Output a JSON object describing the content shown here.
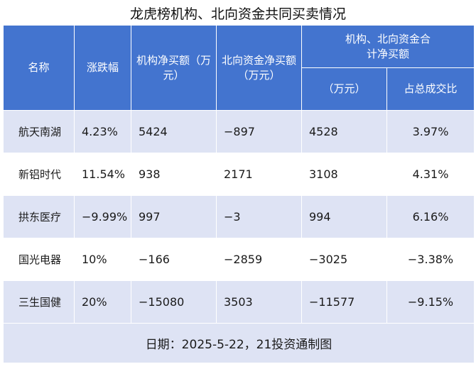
{
  "title": "龙虎榜机构、北向资金共同买卖情况",
  "headers": {
    "name": "名称",
    "change": "涨跌幅",
    "inst_net": "机构净买额（万元）",
    "north_net": "北向资金净买额（万元）",
    "combined_group": "机构、北向资金合计净买额",
    "combined_amount": "（万元）",
    "combined_ratio": "占总成交比"
  },
  "rows": [
    {
      "name": "航天南湖",
      "change": "4.23%",
      "inst_net": "5424",
      "north_net": "−897",
      "combined": "4528",
      "ratio": "3.97%"
    },
    {
      "name": "新铝时代",
      "change": "11.54%",
      "inst_net": "938",
      "north_net": "2171",
      "combined": "3108",
      "ratio": "4.31%"
    },
    {
      "name": "拱东医疗",
      "change": "−9.99%",
      "inst_net": "997",
      "north_net": "−3",
      "combined": "994",
      "ratio": "6.16%"
    },
    {
      "name": "国光电器",
      "change": "10%",
      "inst_net": "−166",
      "north_net": "−2859",
      "combined": "−3025",
      "ratio": "−3.38%"
    },
    {
      "name": "三生国健",
      "change": "20%",
      "inst_net": "−15080",
      "north_net": "3503",
      "combined": "−11577",
      "ratio": "−9.15%"
    }
  ],
  "footer": "日期：2025-5-22，21投资通制图",
  "colors": {
    "header_bg": "#4374cf",
    "row_alt": "#dee3f4",
    "row": "#ffffff"
  }
}
